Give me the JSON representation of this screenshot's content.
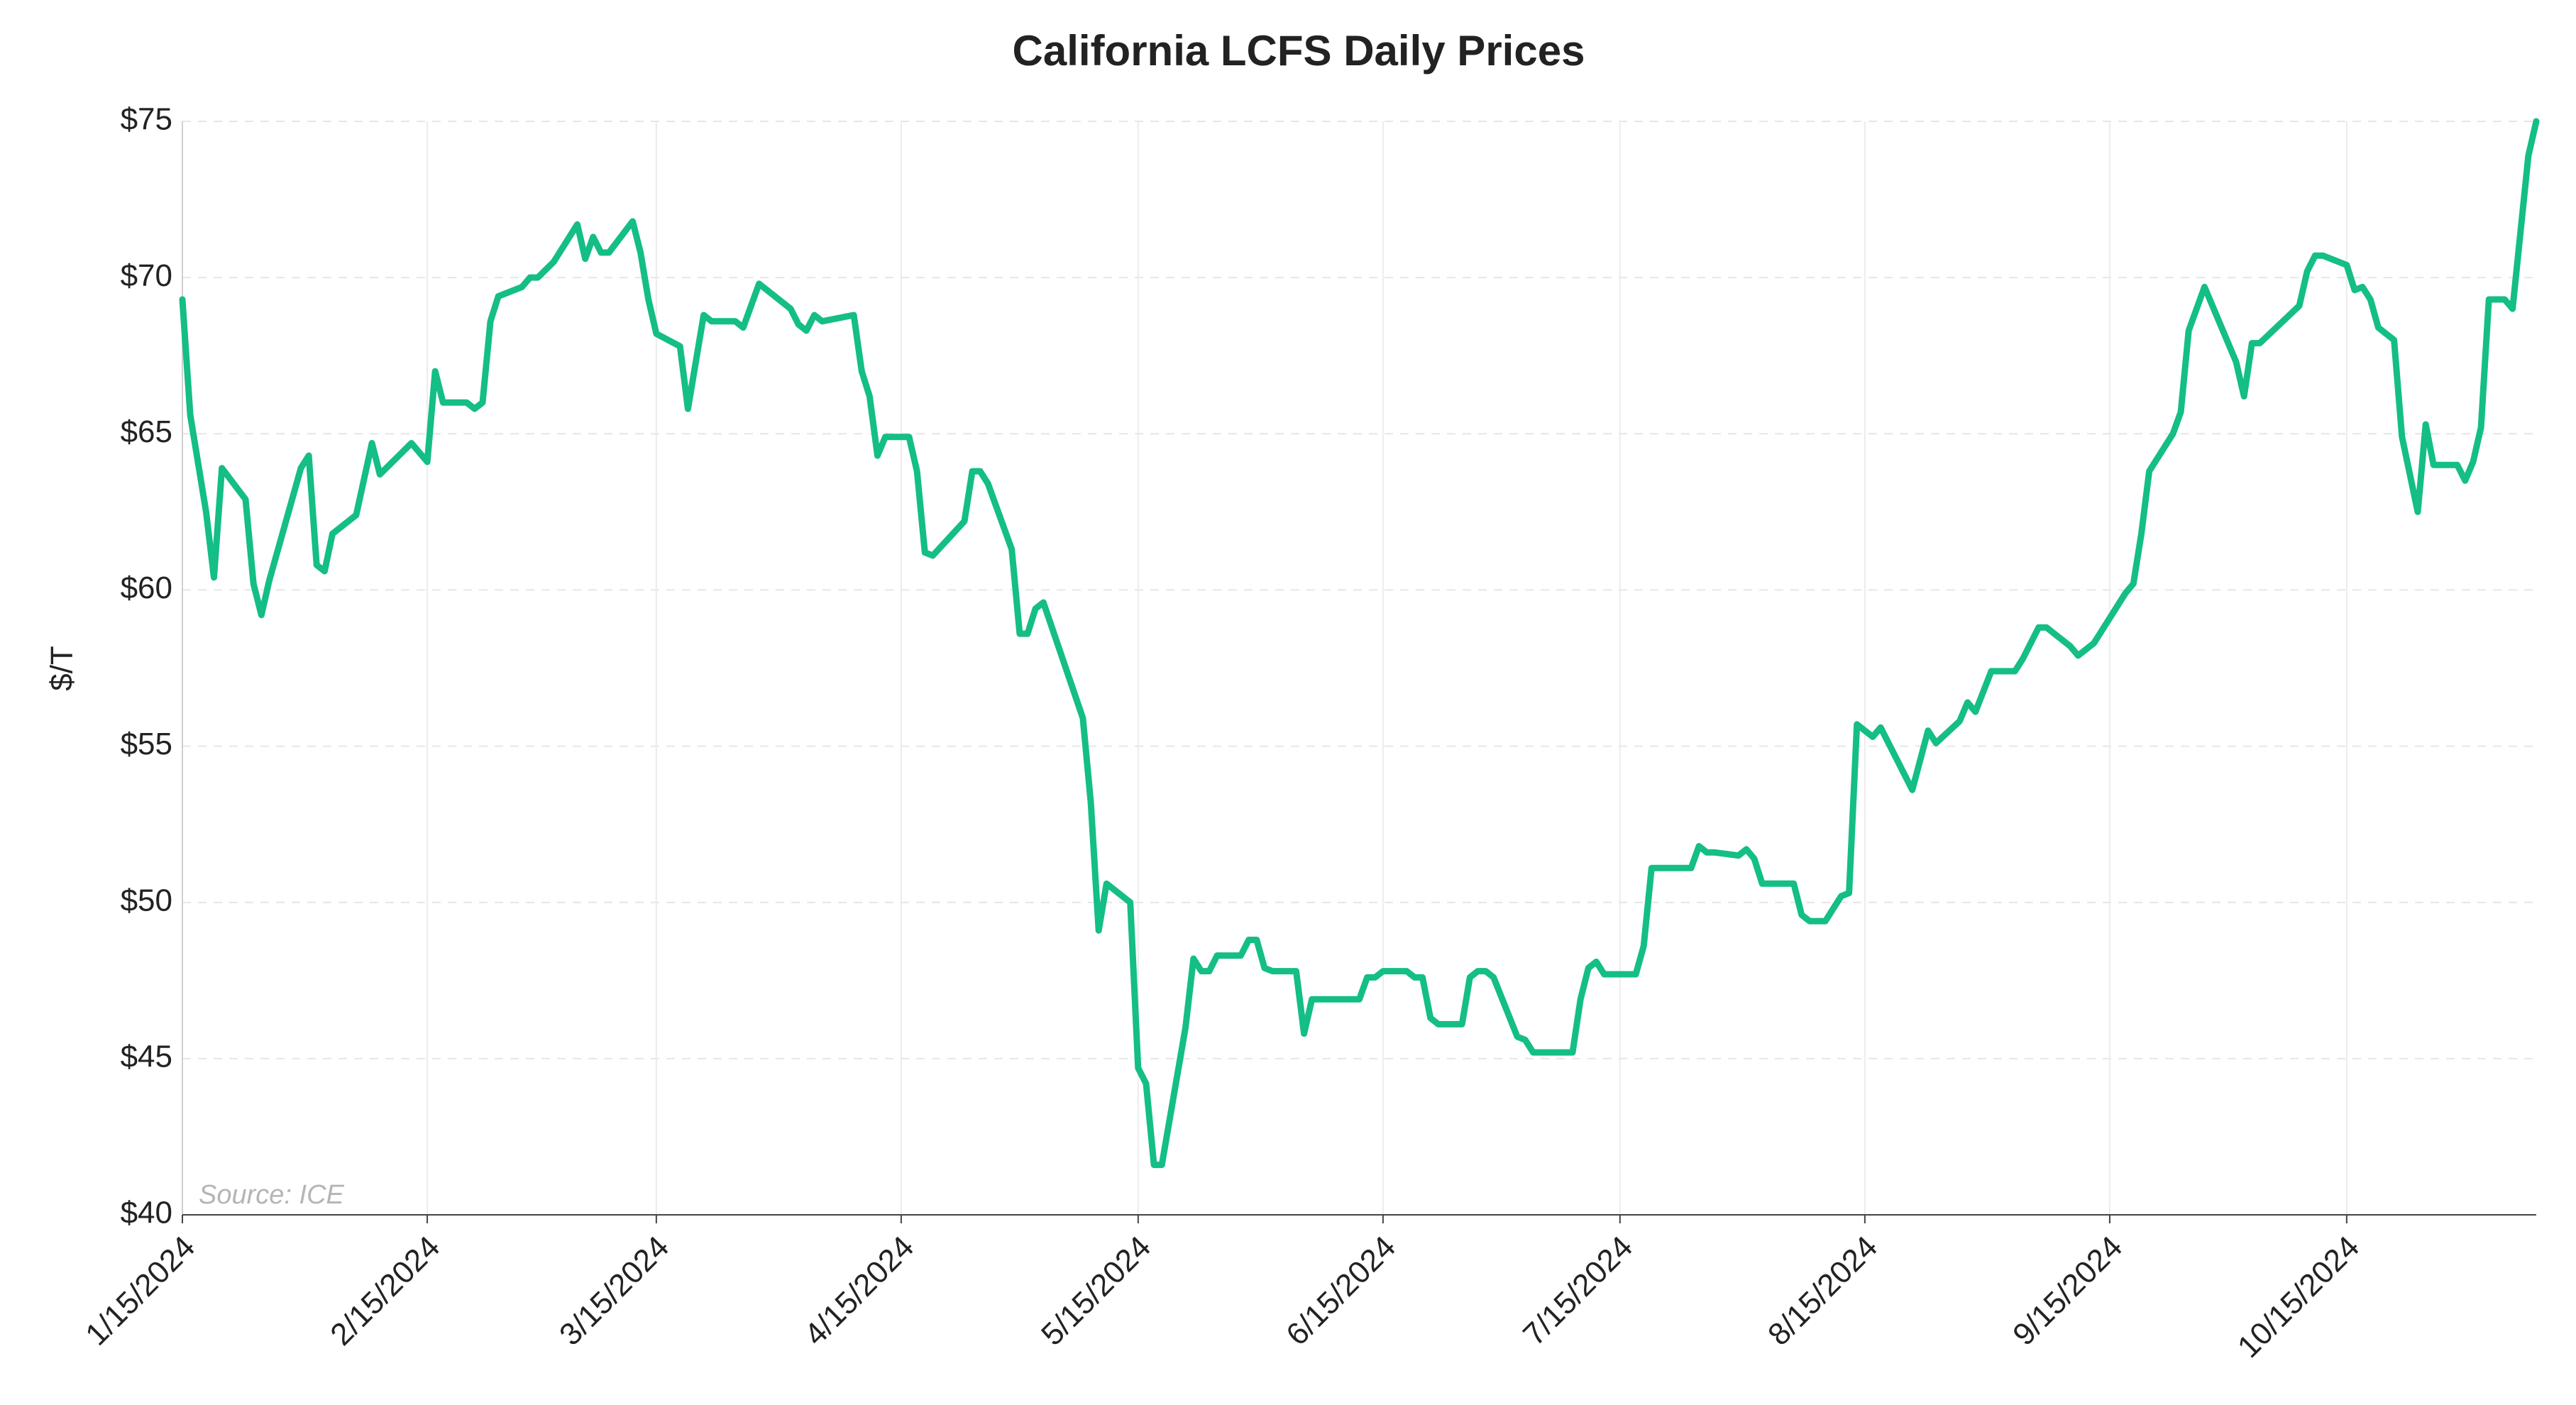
{
  "chart_data": {
    "type": "line",
    "title": "California LCFS Daily Prices",
    "y_label": "$/T",
    "annotation": "Source: ICE",
    "grid": true,
    "xlim": [
      "2024-01-15",
      "2024-11-08"
    ],
    "ylim": [
      40,
      75
    ],
    "yticks": [
      {
        "value": 40,
        "label": "$40"
      },
      {
        "value": 45,
        "label": "$45"
      },
      {
        "value": 50,
        "label": "$50"
      },
      {
        "value": 55,
        "label": "$55"
      },
      {
        "value": 60,
        "label": "$60"
      },
      {
        "value": 65,
        "label": "$65"
      },
      {
        "value": 70,
        "label": "$70"
      },
      {
        "value": 75,
        "label": "$75"
      }
    ],
    "xticks": [
      {
        "value": "2024-01-15",
        "label": "1/15/2024"
      },
      {
        "value": "2024-02-15",
        "label": "2/15/2024"
      },
      {
        "value": "2024-03-15",
        "label": "3/15/2024"
      },
      {
        "value": "2024-04-15",
        "label": "4/15/2024"
      },
      {
        "value": "2024-05-15",
        "label": "5/15/2024"
      },
      {
        "value": "2024-06-15",
        "label": "6/15/2024"
      },
      {
        "value": "2024-07-15",
        "label": "7/15/2024"
      },
      {
        "value": "2024-08-15",
        "label": "8/15/2024"
      },
      {
        "value": "2024-09-15",
        "label": "9/15/2024"
      },
      {
        "value": "2024-10-15",
        "label": "10/15/2024"
      }
    ],
    "x": [
      "2024-01-15",
      "2024-01-16",
      "2024-01-18",
      "2024-01-19",
      "2024-01-20",
      "2024-01-23",
      "2024-01-24",
      "2024-01-25",
      "2024-01-26",
      "2024-01-30",
      "2024-01-31",
      "2024-02-01",
      "2024-02-02",
      "2024-02-03",
      "2024-02-06",
      "2024-02-08",
      "2024-02-09",
      "2024-02-13",
      "2024-02-15",
      "2024-02-16",
      "2024-02-17",
      "2024-02-20",
      "2024-02-21",
      "2024-02-22",
      "2024-02-23",
      "2024-02-24",
      "2024-02-27",
      "2024-02-28",
      "2024-02-29",
      "2024-03-02",
      "2024-03-05",
      "2024-03-06",
      "2024-03-07",
      "2024-03-08",
      "2024-03-09",
      "2024-03-12",
      "2024-03-13",
      "2024-03-14",
      "2024-03-15",
      "2024-03-18",
      "2024-03-19",
      "2024-03-21",
      "2024-03-22",
      "2024-03-25",
      "2024-03-26",
      "2024-03-28",
      "2024-04-01",
      "2024-04-02",
      "2024-04-03",
      "2024-04-04",
      "2024-04-05",
      "2024-04-09",
      "2024-04-10",
      "2024-04-11",
      "2024-04-12",
      "2024-04-13",
      "2024-04-16",
      "2024-04-17",
      "2024-04-18",
      "2024-04-19",
      "2024-04-23",
      "2024-04-24",
      "2024-04-25",
      "2024-04-26",
      "2024-04-29",
      "2024-04-30",
      "2024-05-01",
      "2024-05-02",
      "2024-05-03",
      "2024-05-08",
      "2024-05-09",
      "2024-05-10",
      "2024-05-11",
      "2024-05-14",
      "2024-05-15",
      "2024-05-16",
      "2024-05-17",
      "2024-05-18",
      "2024-05-21",
      "2024-05-22",
      "2024-05-23",
      "2024-05-24",
      "2024-05-25",
      "2024-05-28",
      "2024-05-29",
      "2024-05-30",
      "2024-05-31",
      "2024-06-01",
      "2024-06-04",
      "2024-06-05",
      "2024-06-06",
      "2024-06-12",
      "2024-06-13",
      "2024-06-14",
      "2024-06-15",
      "2024-06-18",
      "2024-06-19",
      "2024-06-20",
      "2024-06-21",
      "2024-06-22",
      "2024-06-25",
      "2024-06-26",
      "2024-06-27",
      "2024-06-28",
      "2024-06-29",
      "2024-07-02",
      "2024-07-03",
      "2024-07-04",
      "2024-07-09",
      "2024-07-10",
      "2024-07-11",
      "2024-07-12",
      "2024-07-13",
      "2024-07-17",
      "2024-07-18",
      "2024-07-19",
      "2024-07-24",
      "2024-07-25",
      "2024-07-26",
      "2024-07-27",
      "2024-07-30",
      "2024-07-31",
      "2024-08-01",
      "2024-08-02",
      "2024-08-06",
      "2024-08-07",
      "2024-08-08",
      "2024-08-10",
      "2024-08-12",
      "2024-08-13",
      "2024-08-14",
      "2024-08-16",
      "2024-08-17",
      "2024-08-21",
      "2024-08-23",
      "2024-08-24",
      "2024-08-27",
      "2024-08-28",
      "2024-08-29",
      "2024-08-31",
      "2024-09-03",
      "2024-09-04",
      "2024-09-06",
      "2024-09-07",
      "2024-09-10",
      "2024-09-11",
      "2024-09-13",
      "2024-09-17",
      "2024-09-18",
      "2024-09-19",
      "2024-09-20",
      "2024-09-23",
      "2024-09-24",
      "2024-09-25",
      "2024-09-27",
      "2024-10-01",
      "2024-10-02",
      "2024-10-03",
      "2024-10-04",
      "2024-10-09",
      "2024-10-10",
      "2024-10-11",
      "2024-10-12",
      "2024-10-15",
      "2024-10-16",
      "2024-10-17",
      "2024-10-18",
      "2024-10-19",
      "2024-10-21",
      "2024-10-22",
      "2024-10-24",
      "2024-10-25",
      "2024-10-26",
      "2024-10-29",
      "2024-10-30",
      "2024-10-31",
      "2024-11-01",
      "2024-11-02",
      "2024-11-04",
      "2024-11-05",
      "2024-11-07",
      "2024-11-08"
    ],
    "series": [
      {
        "name": "LCFS",
        "color": "#14be86",
        "values": [
          69.3,
          65.6,
          62.5,
          60.4,
          63.9,
          62.9,
          60.2,
          59.2,
          60.3,
          63.9,
          64.3,
          60.8,
          60.6,
          61.8,
          62.4,
          64.7,
          63.7,
          64.7,
          64.1,
          67.0,
          66.0,
          66.0,
          65.8,
          66.0,
          68.6,
          69.4,
          69.7,
          70.0,
          70.0,
          70.5,
          71.7,
          70.6,
          71.3,
          70.8,
          70.8,
          71.8,
          70.8,
          69.3,
          68.2,
          67.8,
          65.8,
          68.8,
          68.6,
          68.6,
          68.4,
          69.8,
          69.0,
          68.5,
          68.3,
          68.8,
          68.6,
          68.8,
          67.0,
          66.2,
          64.3,
          64.9,
          64.9,
          63.8,
          61.2,
          61.1,
          62.2,
          63.8,
          63.8,
          63.4,
          61.3,
          58.6,
          58.6,
          59.4,
          59.6,
          55.9,
          53.2,
          49.1,
          50.6,
          50.0,
          44.7,
          44.2,
          41.6,
          41.6,
          46.0,
          48.2,
          47.8,
          47.8,
          48.3,
          48.3,
          48.8,
          48.8,
          47.9,
          47.8,
          47.8,
          45.8,
          46.9,
          46.9,
          47.6,
          47.6,
          47.8,
          47.8,
          47.6,
          47.6,
          46.3,
          46.1,
          46.1,
          47.6,
          47.8,
          47.8,
          47.6,
          45.7,
          45.6,
          45.2,
          45.2,
          46.9,
          47.9,
          48.1,
          47.7,
          47.7,
          48.6,
          51.1,
          51.1,
          51.8,
          51.6,
          51.6,
          51.5,
          51.7,
          51.4,
          50.6,
          50.6,
          49.6,
          49.4,
          49.4,
          50.2,
          50.3,
          55.7,
          55.3,
          55.6,
          53.6,
          55.5,
          55.1,
          55.8,
          56.4,
          56.1,
          57.4,
          57.4,
          57.8,
          58.8,
          58.8,
          58.2,
          57.9,
          58.3,
          59.9,
          60.2,
          61.8,
          63.8,
          65.0,
          65.7,
          68.3,
          69.7,
          67.3,
          66.2,
          67.9,
          67.9,
          69.1,
          70.2,
          70.7,
          70.7,
          70.4,
          69.6,
          69.7,
          69.3,
          68.4,
          68.0,
          64.9,
          62.5,
          65.3,
          64.0,
          64.0,
          63.5,
          64.1,
          65.2,
          69.3,
          69.3,
          69.0,
          73.9,
          75.0
        ]
      }
    ]
  }
}
